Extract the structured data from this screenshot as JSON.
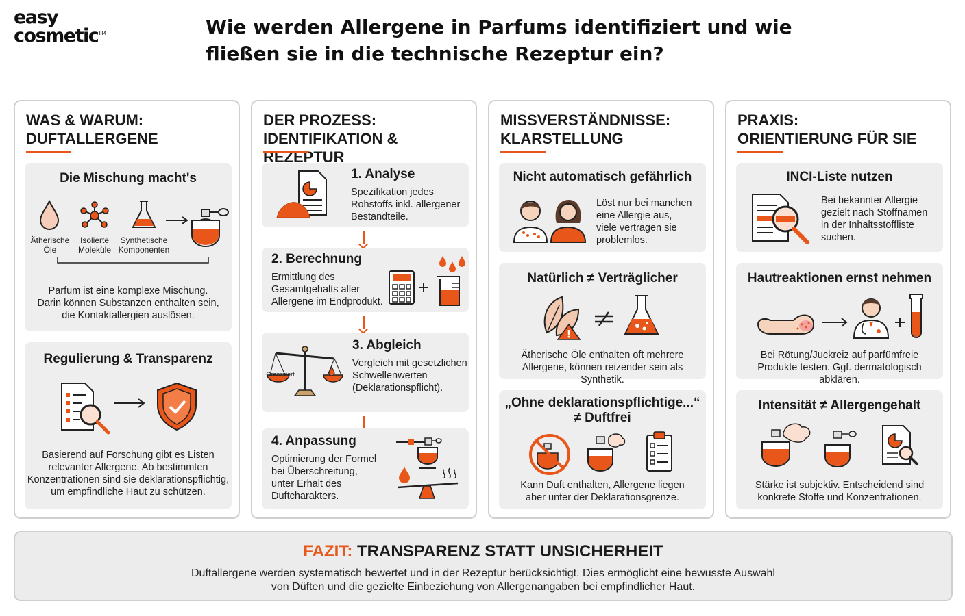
{
  "logo": {
    "line1": "easy",
    "line2": "cosmetic",
    "tm": "TM"
  },
  "title": {
    "line1": "Wie werden Allergene in Parfums identifiziert und wie",
    "line2": "fließen sie in die technische Rezeptur ein?"
  },
  "colors": {
    "accent": "#e8561a",
    "card_bg": "#eeeeee",
    "border": "#cfcfcf"
  },
  "col1": {
    "head1": "WAS & WARUM:",
    "head2": "DUFTALLERGENE",
    "card1": {
      "title": "Die Mischung macht's",
      "labels": [
        "Ätherische",
        "Öle",
        "Isolierte",
        "Moleküle",
        "Synthetische",
        "Komponenten"
      ],
      "text": [
        "Parfum ist eine komplexe Mischung.",
        "Darin können Substanzen enthalten sein,",
        "die Kontaktallergien auslösen."
      ]
    },
    "card2": {
      "title": "Regulierung & Transparenz",
      "text": [
        "Basierend auf Forschung gibt es Listen",
        "relevanter Allergene. Ab bestimmten",
        "Konzentrationen sind sie deklarationspflichtig,",
        "um empfindliche Haut zu schützen."
      ]
    }
  },
  "col2": {
    "head1": "DER PROZESS:",
    "head2": "IDENTIFIKATION & REZEPTUR",
    "step1": {
      "title": "1. Analyse",
      "text": [
        "Spezifikation jedes",
        "Rohstoffs inkl. allergener",
        "Bestandteile."
      ]
    },
    "step2": {
      "title": "2. Berechnung",
      "text": [
        "Ermittlung des",
        "Gesamtgehalts aller",
        "Allergene im Endprodukt."
      ]
    },
    "step3": {
      "title": "3. Abgleich",
      "label": "Grenzwert",
      "text": [
        "Vergleich mit gesetzlichen",
        "Schwellenwerten",
        "(Deklarationspflicht)."
      ]
    },
    "step4": {
      "title": "4. Anpassung",
      "text": [
        "Optimierung der Formel",
        "bei Überschreitung,",
        "unter Erhalt des",
        "Duftcharakters."
      ]
    }
  },
  "col3": {
    "head1": "MISSVERSTÄNDNISSE:",
    "head2": "KLARSTELLUNG",
    "card1": {
      "title": "Nicht automatisch gefährlich",
      "text": [
        "Löst nur bei manchen",
        "eine Allergie aus,",
        "viele vertragen sie",
        "problemlos."
      ]
    },
    "card2": {
      "title": "Natürlich ≠ Verträglicher",
      "text": [
        "Ätherische Öle enthalten oft mehrere",
        "Allergene, können reizender sein als Synthetik."
      ]
    },
    "card3": {
      "title1": "„Ohne deklarationspflichtige...“",
      "title2": "≠ Duftfrei",
      "text": [
        "Kann Duft enthalten, Allergene liegen",
        "aber unter der Deklarationsgrenze."
      ]
    }
  },
  "col4": {
    "head1": "PRAXIS:",
    "head2": "ORIENTIERUNG FÜR SIE",
    "card1": {
      "title": "INCI-Liste nutzen",
      "text": [
        "Bei bekannter Allergie",
        "gezielt nach Stoffnamen",
        "in der Inhaltsstoffliste",
        "suchen."
      ]
    },
    "card2": {
      "title": "Hautreaktionen ernst nehmen",
      "text": [
        "Bei Rötung/Juckreiz auf parfümfreie",
        "Produkte testen. Ggf. dermatologisch abklären."
      ]
    },
    "card3": {
      "title": "Intensität ≠ Allergengehalt",
      "text": [
        "Stärke ist subjektiv. Entscheidend sind",
        "konkrete Stoffe und Konzentrationen."
      ]
    }
  },
  "fazit": {
    "label": "FAZIT:",
    "title": "TRANSPARENZ STATT UNSICHERHEIT",
    "text": [
      "Duftallergene werden systematisch bewertet und in der Rezeptur berücksichtigt. Dies ermöglicht eine bewusste Auswahl",
      "von Düften und die gezielte Einbeziehung von Allergenangaben bei empfindlicher Haut."
    ]
  }
}
